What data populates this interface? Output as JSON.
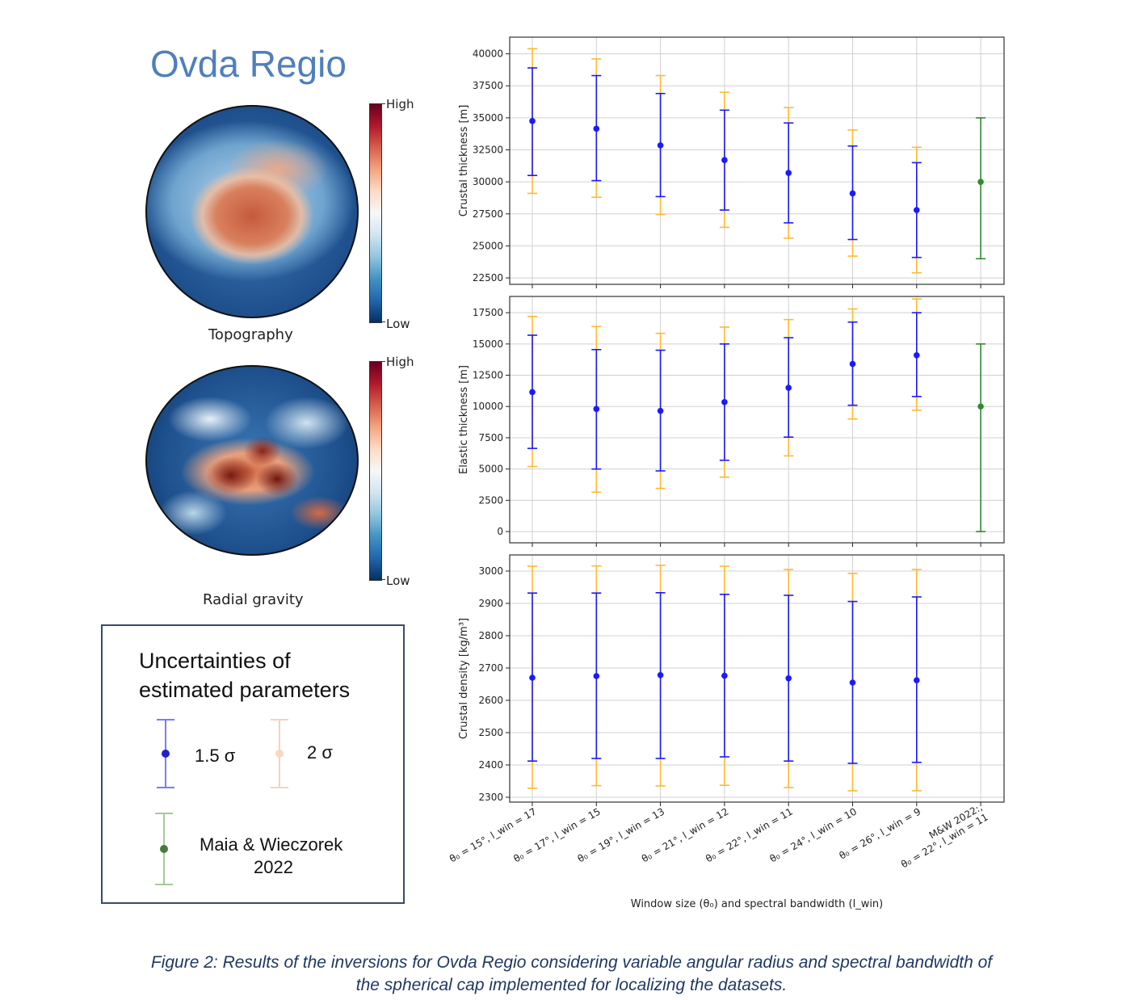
{
  "figure": {
    "title": "Ovda Regio",
    "caption_line1": "Figure 2: Results of the inversions for Ovda Regio considering variable angular radius and spectral bandwidth of",
    "caption_line2": "the spherical cap implemented for localizing the datasets."
  },
  "maps": [
    {
      "label": "Topography",
      "cbar_high": "High",
      "cbar_low": "Low"
    },
    {
      "label": "Radial gravity",
      "cbar_high": "High",
      "cbar_low": "Low"
    }
  ],
  "legend": {
    "title_line1": "Uncertainties of",
    "title_line2": "estimated parameters",
    "item_15sigma": "1.5 σ",
    "item_2sigma": "2 σ",
    "item_ref_line1": "Maia & Wieczorek",
    "item_ref_line2": "2022"
  },
  "colors": {
    "sigma15": "#1a1aff",
    "sigma2": "#ffb833",
    "reference": "#2e8b2e",
    "title": "#4f7fbd",
    "caption": "#1f3864"
  },
  "chart_data": {
    "type": "scatter",
    "xlabel": "Window size (θ₀) and spectral bandwidth (l_win)",
    "categories": [
      "θ₀ = 15°, l_win = 17",
      "θ₀ = 17°, l_win = 15",
      "θ₀ = 19°, l_win = 13",
      "θ₀ = 21°, l_win = 12",
      "θ₀ = 22°, l_win = 11",
      "θ₀ = 24°, l_win = 10",
      "θ₀ = 26°, l_win = 9",
      "M&W 2022:, θ₀ = 22°, l_win = 11"
    ],
    "grid": true,
    "panels": [
      {
        "ylabel": "Crustal thickness [m]",
        "ylim": [
          22000,
          41300
        ],
        "yticks": [
          22500,
          25000,
          27500,
          30000,
          32500,
          35000,
          37500,
          40000
        ],
        "points": [
          {
            "value": 34750,
            "sigma15": [
              30500,
              38900
            ],
            "sigma2": [
              29100,
              40400
            ]
          },
          {
            "value": 34150,
            "sigma15": [
              30100,
              38300
            ],
            "sigma2": [
              28800,
              39600
            ]
          },
          {
            "value": 32850,
            "sigma15": [
              28850,
              36900
            ],
            "sigma2": [
              27450,
              38300
            ]
          },
          {
            "value": 31700,
            "sigma15": [
              27800,
              35600
            ],
            "sigma2": [
              26450,
              37000
            ]
          },
          {
            "value": 30700,
            "sigma15": [
              26800,
              34600
            ],
            "sigma2": [
              25600,
              35800
            ]
          },
          {
            "value": 29100,
            "sigma15": [
              25500,
              32800
            ],
            "sigma2": [
              24200,
              34050
            ]
          },
          {
            "value": 27800,
            "sigma15": [
              24100,
              31500
            ],
            "sigma2": [
              22900,
              32700
            ]
          },
          {
            "value": 30000,
            "reference": [
              24000,
              35000
            ]
          }
        ]
      },
      {
        "ylabel": "Elastic thickness [m]",
        "ylim": [
          -900,
          18800
        ],
        "yticks": [
          0,
          2500,
          5000,
          7500,
          10000,
          12500,
          15000,
          17500
        ],
        "points": [
          {
            "value": 11150,
            "sigma15": [
              6650,
              15700
            ],
            "sigma2": [
              5200,
              17200
            ]
          },
          {
            "value": 9800,
            "sigma15": [
              5000,
              14550
            ],
            "sigma2": [
              3150,
              16400
            ]
          },
          {
            "value": 9650,
            "sigma15": [
              4850,
              14500
            ],
            "sigma2": [
              3450,
              15850
            ]
          },
          {
            "value": 10350,
            "sigma15": [
              5700,
              15000
            ],
            "sigma2": [
              4350,
              16350
            ]
          },
          {
            "value": 11500,
            "sigma15": [
              7550,
              15500
            ],
            "sigma2": [
              6050,
              16950
            ]
          },
          {
            "value": 13400,
            "sigma15": [
              10100,
              16750
            ],
            "sigma2": [
              9000,
              17800
            ]
          },
          {
            "value": 14100,
            "sigma15": [
              10800,
              17500
            ],
            "sigma2": [
              9700,
              18600
            ]
          },
          {
            "value": 10000,
            "reference": [
              0,
              15000
            ]
          }
        ]
      },
      {
        "ylabel": "Crustal density [kg/m³]",
        "ylim": [
          2285,
          3050
        ],
        "yticks": [
          2300,
          2400,
          2500,
          2600,
          2700,
          2800,
          2900,
          3000
        ],
        "points": [
          {
            "value": 2670,
            "sigma15": [
              2412,
              2932
            ],
            "sigma2": [
              2328,
              3015
            ]
          },
          {
            "value": 2675,
            "sigma15": [
              2420,
              2932
            ],
            "sigma2": [
              2336,
              3016
            ]
          },
          {
            "value": 2678,
            "sigma15": [
              2420,
              2933
            ],
            "sigma2": [
              2335,
              3018
            ]
          },
          {
            "value": 2676,
            "sigma15": [
              2425,
              2928
            ],
            "sigma2": [
              2337,
              3015
            ]
          },
          {
            "value": 2668,
            "sigma15": [
              2412,
              2925
            ],
            "sigma2": [
              2330,
              3005
            ]
          },
          {
            "value": 2655,
            "sigma15": [
              2405,
              2906
            ],
            "sigma2": [
              2320,
              2993
            ]
          },
          {
            "value": 2662,
            "sigma15": [
              2408,
              2920
            ],
            "sigma2": [
              2320,
              3005
            ]
          }
        ]
      }
    ]
  }
}
